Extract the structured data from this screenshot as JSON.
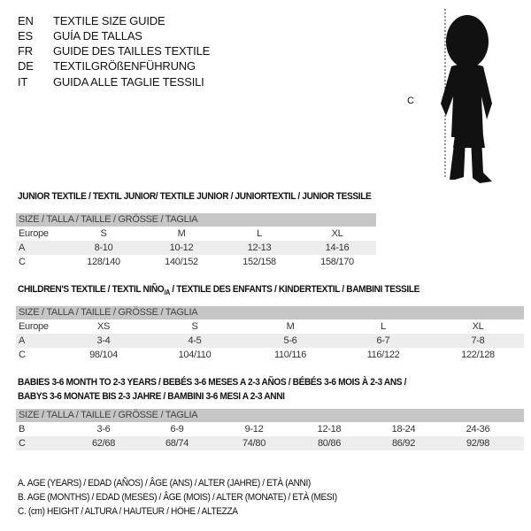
{
  "languages": [
    {
      "code": "EN",
      "title": "TEXTILE SIZE GUIDE"
    },
    {
      "code": "ES",
      "title": "GUÍA DE TALLAS"
    },
    {
      "code": "FR",
      "title": "GUIDE DES TAILLES TEXTILE"
    },
    {
      "code": "DE",
      "title": "TEXTILGRÖßENFÜHRUNG"
    },
    {
      "code": "IT",
      "title": "GUIDA ALLE TAGLIE TESSILI"
    }
  ],
  "figure": {
    "measure_label": "C",
    "icon": "child-silhouette"
  },
  "junior": {
    "title": "JUNIOR TEXTILE / TEXTIL JUNIOR/ TEXTILE JUNIOR / JUNIORTEXTIL / JUNIOR TESSILE",
    "header": "SIZE / TALLA / TAILLE / GRÖSSE / TAGLIA",
    "rows": [
      {
        "label": "Europe",
        "values": [
          "S",
          "M",
          "L",
          "XL"
        ]
      },
      {
        "label": "A",
        "values": [
          "8-10",
          "10-12",
          "12-13",
          "14-16"
        ]
      },
      {
        "label": "C",
        "values": [
          "128/140",
          "140/152",
          "152/158",
          "158/170"
        ]
      }
    ]
  },
  "children": {
    "title_pre": "CHILDREN'S TEXTILE / TEXTIL NIÑO",
    "title_sub": "/A",
    "title_post": " / TEXTILE DES ENFANTS / KINDERTEXTIL / BAMBINI TESSILE",
    "header": "SIZE / TALLA / TAILLE / GRÖSSE / TAGLIA",
    "rows": [
      {
        "label": "Europe",
        "values": [
          "XS",
          "S",
          "M",
          "L",
          "XL"
        ]
      },
      {
        "label": "A",
        "values": [
          "3-4",
          "4-5",
          "5-6",
          "6-7",
          "7-8"
        ]
      },
      {
        "label": "C",
        "values": [
          "98/104",
          "104/110",
          "110/116",
          "116/122",
          "122/128"
        ]
      }
    ]
  },
  "babies": {
    "title_line1": "BABIES 3-6 MONTH TO 2-3 YEARS / BEBÉS 3-6 MESES A 2-3 AÑOS / BÉBÉS 3-6 MOIS À 2-3 ANS /",
    "title_line2": "BABYS 3-6 MONATE BIS 2-3 JAHRE / BAMBINI 3-6 MESI A 2-3 ANNI",
    "header": "SIZE / TALLA / TAILLE / GRÖSSE / TAGLIA",
    "rows": [
      {
        "label": "B",
        "values": [
          "3-6",
          "6-9",
          "9-12",
          "12-18",
          "18-24",
          "24-36"
        ]
      },
      {
        "label": "C",
        "values": [
          "62/68",
          "68/74",
          "74/80",
          "80/86",
          "86/92",
          "92/98"
        ]
      }
    ]
  },
  "legend": [
    "A. AGE (YEARS) / EDAD (AÑOS) / ÂGE (ANS) / ALTER (JAHRE) / ETÀ (ANNI)",
    "B. AGE (MONTHS) / EDAD (MESES) / ÂGE (MOIS) / ALTER (MONATE) / ETÀ (MESI)",
    "C. (cm) HEIGHT / ALTURA / HAUTEUR / HÖHE / ALTEZZA"
  ]
}
